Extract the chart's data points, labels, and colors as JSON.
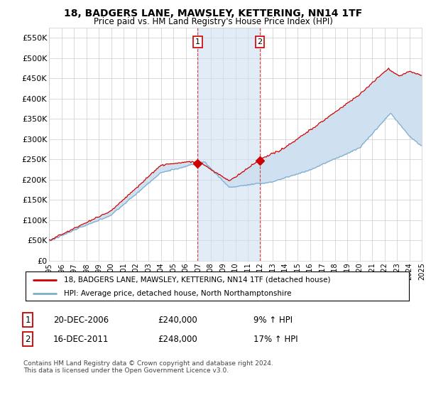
{
  "title": "18, BADGERS LANE, MAWSLEY, KETTERING, NN14 1TF",
  "subtitle": "Price paid vs. HM Land Registry's House Price Index (HPI)",
  "legend_line1": "18, BADGERS LANE, MAWSLEY, KETTERING, NN14 1TF (detached house)",
  "legend_line2": "HPI: Average price, detached house, North Northamptonshire",
  "annotation1_label": "1",
  "annotation1_date": "20-DEC-2006",
  "annotation1_price": "£240,000",
  "annotation1_hpi": "9% ↑ HPI",
  "annotation1_year": 2006.97,
  "annotation1_value": 240000,
  "annotation2_label": "2",
  "annotation2_date": "16-DEC-2011",
  "annotation2_price": "£248,000",
  "annotation2_hpi": "17% ↑ HPI",
  "annotation2_year": 2011.97,
  "annotation2_value": 248000,
  "footer": "Contains HM Land Registry data © Crown copyright and database right 2024.\nThis data is licensed under the Open Government Licence v3.0.",
  "price_color": "#cc0000",
  "hpi_color": "#7aadcf",
  "shade_color": "#cfe0f0",
  "grid_color": "#cccccc",
  "bg_color": "#ffffff",
  "ylim": [
    0,
    575000
  ],
  "yticks": [
    0,
    50000,
    100000,
    150000,
    200000,
    250000,
    300000,
    350000,
    400000,
    450000,
    500000,
    550000
  ],
  "xmin": 1995,
  "xmax": 2025
}
